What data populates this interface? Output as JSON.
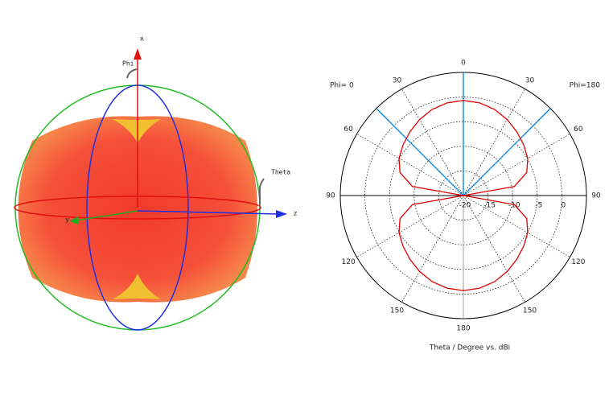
{
  "view_3d": {
    "axis_x": "x",
    "axis_y": "y",
    "axis_z": "z",
    "phi": "Phi",
    "theta": "Theta"
  },
  "chart_data": {
    "type": "polar",
    "title": "Theta / Degree vs. dBi",
    "theta": [
      0,
      10,
      20,
      30,
      40,
      50,
      60,
      70,
      80,
      90,
      100,
      110,
      120,
      130,
      140,
      150,
      160,
      170,
      180
    ],
    "series": [
      {
        "name": "Phi= 0",
        "side": "left",
        "color": "#e00000",
        "values": [
          -0.7,
          -0.9,
          -1.4,
          -2.2,
          -3.1,
          -4.0,
          -4.9,
          -6.3,
          -9.5,
          -20,
          -9.5,
          -6.3,
          -4.9,
          -4.0,
          -3.1,
          -2.2,
          -1.4,
          -0.9,
          -0.7
        ]
      },
      {
        "name": "Phi=180",
        "side": "right",
        "color": "#e00000",
        "values": [
          -0.7,
          -0.9,
          -1.4,
          -2.2,
          -3.1,
          -4.0,
          -4.9,
          -6.3,
          -9.5,
          -20,
          -9.5,
          -6.3,
          -4.9,
          -4.0,
          -3.1,
          -2.2,
          -1.4,
          -0.9,
          -0.7
        ]
      }
    ],
    "rlim": [
      -20,
      5
    ],
    "rticks": [
      -20,
      -15,
      -10,
      -5,
      0
    ],
    "thetaticks": [
      0,
      30,
      60,
      90,
      120,
      150,
      180
    ],
    "marker_theta": [
      0,
      45
    ],
    "marker_color": "#1a8fe0"
  }
}
